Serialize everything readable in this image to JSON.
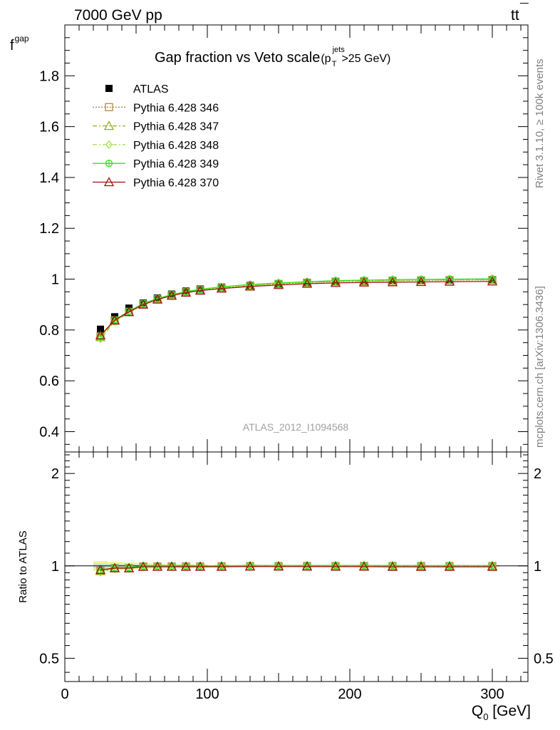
{
  "header": {
    "energy_label": "7000 GeV pp",
    "process_label_base": "tt",
    "process_label_bar": "¯"
  },
  "side_labels": {
    "rivet": "Rivet 3.1.10, ≥ 100k events",
    "mcplots": "mcplots.cern.ch [arXiv:1306.3436]"
  },
  "watermark": "ATLAS_2012_I1094568",
  "chart_data": [
    {
      "type": "line",
      "title_main": "Gap fraction vs Veto scale",
      "title_paren_open": "(p",
      "title_sup": "jets",
      "title_sub": "T",
      "title_tail": ">25 GeV)",
      "ylabel_main": "f",
      "ylabel_sub": "gap",
      "xlim": [
        0,
        325
      ],
      "ylim": [
        0.32,
        2.0
      ],
      "yticks": [
        0.4,
        0.6,
        0.8,
        1,
        1.2,
        1.4,
        1.6,
        1.8
      ],
      "ytick_labels": [
        "0.4",
        "0.6",
        "0.8",
        "1",
        "1.2",
        "1.4",
        "1.6",
        "1.8"
      ],
      "legend_position": "top-left",
      "x": [
        25,
        35,
        45,
        55,
        65,
        75,
        85,
        95,
        110,
        130,
        150,
        170,
        190,
        210,
        230,
        250,
        270,
        300
      ],
      "data": {
        "name": "ATLAS",
        "values": [
          0.803,
          0.852,
          0.886,
          0.906,
          0.926,
          0.941,
          0.953,
          0.961,
          0.969,
          0.976,
          0.982,
          0.987,
          0.991,
          0.993,
          0.995,
          0.996,
          0.997,
          0.998
        ],
        "yerr": [
          0.012,
          0.01,
          0.009,
          0.008,
          0.007,
          0.006,
          0.006,
          0.005,
          0.005,
          0.004,
          0.004,
          0.003,
          0.003,
          0.003,
          0.003,
          0.003,
          0.003,
          0.003
        ]
      },
      "series": [
        {
          "name": "Pythia 6.428 346",
          "color": "#b5884a",
          "marker": "square-open",
          "dash": "dotted",
          "values": [
            0.775,
            0.838,
            0.872,
            0.902,
            0.922,
            0.937,
            0.949,
            0.957,
            0.966,
            0.974,
            0.981,
            0.986,
            0.99,
            0.992,
            0.994,
            0.995,
            0.996,
            0.997
          ]
        },
        {
          "name": "Pythia 6.428 347",
          "color": "#8fb020",
          "marker": "triangle-open",
          "dash": "dashdot",
          "values": [
            0.772,
            0.836,
            0.87,
            0.9,
            0.921,
            0.936,
            0.948,
            0.957,
            0.966,
            0.975,
            0.982,
            0.987,
            0.991,
            0.993,
            0.995,
            0.996,
            0.997,
            0.998
          ]
        },
        {
          "name": "Pythia 6.428 348",
          "color": "#9ee040",
          "marker": "diamond-open",
          "dash": "dashdot",
          "values": [
            0.765,
            0.832,
            0.868,
            0.898,
            0.92,
            0.935,
            0.948,
            0.957,
            0.967,
            0.976,
            0.983,
            0.988,
            0.992,
            0.994,
            0.996,
            0.997,
            0.998,
            0.999
          ]
        },
        {
          "name": "Pythia 6.428 349",
          "color": "#38e020",
          "marker": "circle-cross",
          "dash": "solid",
          "values": [
            0.777,
            0.84,
            0.874,
            0.904,
            0.924,
            0.939,
            0.951,
            0.96,
            0.97,
            0.979,
            0.985,
            0.99,
            0.994,
            0.996,
            0.998,
            0.999,
            1.0,
            1.001
          ]
        },
        {
          "name": "Pythia 6.428 370",
          "color": "#a01010",
          "marker": "triangle-open",
          "dash": "solid",
          "values": [
            0.779,
            0.838,
            0.871,
            0.9,
            0.92,
            0.935,
            0.947,
            0.955,
            0.963,
            0.971,
            0.977,
            0.982,
            0.985,
            0.987,
            0.988,
            0.989,
            0.99,
            0.991
          ]
        }
      ]
    },
    {
      "type": "line",
      "ylabel": "Ratio to ATLAS",
      "xlabel_main": "Q",
      "xlabel_sub": "0",
      "xlabel_tail": " [GeV]",
      "xlim": [
        0,
        325
      ],
      "xticks": [
        0,
        100,
        200,
        300
      ],
      "xtick_labels": [
        "0",
        "100",
        "200",
        "300"
      ],
      "ylim": [
        0.42,
        2.35
      ],
      "ylog": true,
      "yticks": [
        0.5,
        1,
        2
      ],
      "ytick_labels": [
        "0.5",
        "1",
        "2"
      ],
      "reference_line": 1
    }
  ]
}
